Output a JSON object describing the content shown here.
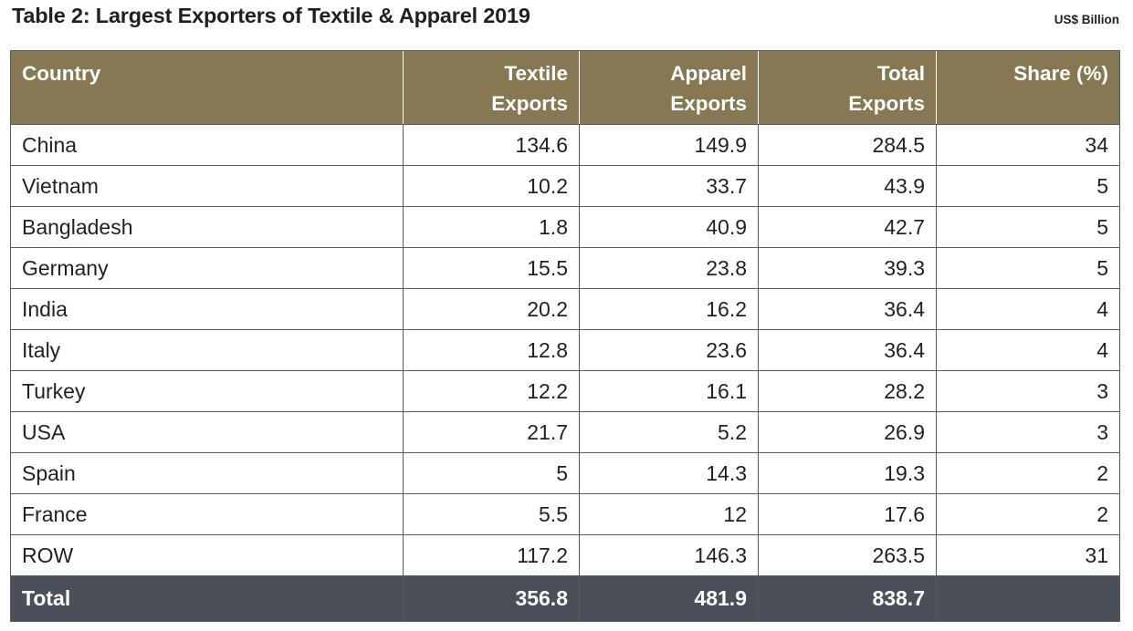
{
  "title": "Table 2: Largest Exporters of Textile & Apparel 2019",
  "unit": "US$ Billion",
  "colors": {
    "header_bg": "#857853",
    "total_bg": "#4b4f5a",
    "text": "#231f20"
  },
  "table": {
    "headers": [
      {
        "line1": "Country",
        "line2": ""
      },
      {
        "line1": "Textile",
        "line2": "Exports"
      },
      {
        "line1": "Apparel",
        "line2": "Exports"
      },
      {
        "line1": "Total",
        "line2": "Exports"
      },
      {
        "line1": "Share (%)",
        "line2": ""
      }
    ],
    "rows": [
      {
        "country": "China",
        "textile": "134.6",
        "apparel": "149.9",
        "total": "284.5",
        "share": "34"
      },
      {
        "country": "Vietnam",
        "textile": "10.2",
        "apparel": "33.7",
        "total": "43.9",
        "share": "5"
      },
      {
        "country": "Bangladesh",
        "textile": "1.8",
        "apparel": "40.9",
        "total": "42.7",
        "share": "5"
      },
      {
        "country": "Germany",
        "textile": "15.5",
        "apparel": "23.8",
        "total": "39.3",
        "share": "5"
      },
      {
        "country": "India",
        "textile": "20.2",
        "apparel": "16.2",
        "total": "36.4",
        "share": "4"
      },
      {
        "country": "Italy",
        "textile": "12.8",
        "apparel": "23.6",
        "total": "36.4",
        "share": "4"
      },
      {
        "country": "Turkey",
        "textile": "12.2",
        "apparel": "16.1",
        "total": "28.2",
        "share": "3"
      },
      {
        "country": "USA",
        "textile": "21.7",
        "apparel": "5.2",
        "total": "26.9",
        "share": "3"
      },
      {
        "country": "Spain",
        "textile": "5",
        "apparel": "14.3",
        "total": "19.3",
        "share": "2"
      },
      {
        "country": "France",
        "textile": "5.5",
        "apparel": "12",
        "total": "17.6",
        "share": "2"
      },
      {
        "country": "ROW",
        "textile": "117.2",
        "apparel": "146.3",
        "total": "263.5",
        "share": "31"
      }
    ],
    "total": {
      "country": "Total",
      "textile": "356.8",
      "apparel": "481.9",
      "total": "838.7",
      "share": ""
    }
  }
}
